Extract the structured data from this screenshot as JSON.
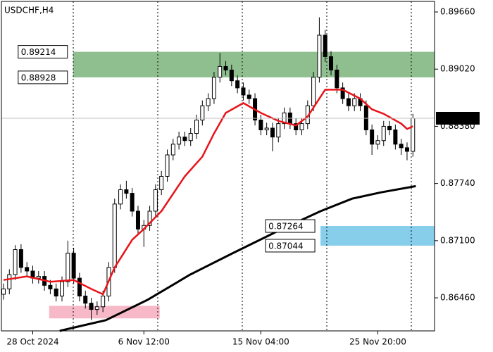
{
  "chart_data": {
    "type": "candlestick",
    "title": "USDCHF,H4",
    "xlim": [
      -0.6,
      73.7
    ],
    "ylim": [
      0.8609,
      0.89794
    ],
    "xticks": [
      {
        "value": 5,
        "label": "28 Oct 2024"
      },
      {
        "value": 24,
        "label": "6 Nov 12:00"
      },
      {
        "value": 44,
        "label": "15 Nov 04:00"
      },
      {
        "value": 64,
        "label": "25 Nov 20:00"
      }
    ],
    "yticks": [
      {
        "value": 0.8966,
        "label": "0.89660"
      },
      {
        "value": 0.8902,
        "label": "0.89020"
      },
      {
        "value": 0.8838,
        "label": "0.88380"
      },
      {
        "value": 0.8774,
        "label": "0.87740"
      },
      {
        "value": 0.871,
        "label": "0.87100"
      },
      {
        "value": 0.8646,
        "label": "0.86460"
      }
    ],
    "open": [
      0.865,
      0.8656,
      0.8672,
      0.87,
      0.868,
      0.8676,
      0.8668,
      0.867,
      0.866,
      0.8656,
      0.8648,
      0.8664,
      0.8696,
      0.8668,
      0.8648,
      0.864,
      0.8633,
      0.8636,
      0.8648,
      0.868,
      0.8751,
      0.8767,
      0.8763,
      0.8743,
      0.8723,
      0.8727,
      0.8743,
      0.8767,
      0.8782,
      0.8806,
      0.8818,
      0.8826,
      0.8822,
      0.883,
      0.8845,
      0.8861,
      0.8869,
      0.8893,
      0.8905,
      0.8901,
      0.8889,
      0.8881,
      0.8873,
      0.8869,
      0.8845,
      0.8834,
      0.8836,
      0.8826,
      0.8841,
      0.8853,
      0.8841,
      0.8834,
      0.8841,
      0.8861,
      0.8893,
      0.894,
      0.8916,
      0.8901,
      0.8881,
      0.8869,
      0.8861,
      0.8869,
      0.8861,
      0.8834,
      0.8818,
      0.8822,
      0.8838,
      0.8834,
      0.8818,
      0.8814,
      0.881
    ],
    "high": [
      0.8662,
      0.8678,
      0.8705,
      0.8706,
      0.8686,
      0.8682,
      0.8676,
      0.8676,
      0.8666,
      0.8662,
      0.867,
      0.871,
      0.8702,
      0.8674,
      0.8654,
      0.8646,
      0.8642,
      0.8654,
      0.8686,
      0.8757,
      0.8773,
      0.8777,
      0.8769,
      0.8749,
      0.8733,
      0.8749,
      0.8773,
      0.8788,
      0.8812,
      0.8824,
      0.8832,
      0.8832,
      0.8836,
      0.8851,
      0.8867,
      0.8875,
      0.8899,
      0.892,
      0.8911,
      0.8907,
      0.8895,
      0.8887,
      0.8879,
      0.8875,
      0.8851,
      0.8842,
      0.8842,
      0.8847,
      0.8859,
      0.8859,
      0.8847,
      0.8847,
      0.8867,
      0.8899,
      0.896,
      0.8946,
      0.8922,
      0.8907,
      0.8887,
      0.8875,
      0.8875,
      0.8875,
      0.8867,
      0.884,
      0.8828,
      0.8844,
      0.8844,
      0.884,
      0.8824,
      0.882,
      0.8852
    ],
    "low": [
      0.8644,
      0.865,
      0.8666,
      0.8674,
      0.867,
      0.8662,
      0.8662,
      0.8654,
      0.865,
      0.8642,
      0.8642,
      0.8658,
      0.8662,
      0.8642,
      0.8634,
      0.8621,
      0.8627,
      0.863,
      0.8642,
      0.8674,
      0.8745,
      0.8757,
      0.8737,
      0.8717,
      0.8703,
      0.8721,
      0.8737,
      0.8761,
      0.8776,
      0.88,
      0.8812,
      0.8816,
      0.8816,
      0.8824,
      0.8839,
      0.8855,
      0.8863,
      0.8887,
      0.8895,
      0.8883,
      0.8875,
      0.8867,
      0.8863,
      0.8839,
      0.8828,
      0.8828,
      0.881,
      0.882,
      0.8835,
      0.8835,
      0.8828,
      0.8828,
      0.8835,
      0.8855,
      0.8887,
      0.891,
      0.8895,
      0.8875,
      0.8863,
      0.8855,
      0.8855,
      0.8855,
      0.8828,
      0.8806,
      0.8812,
      0.8816,
      0.8828,
      0.8812,
      0.8806,
      0.88,
      0.8804
    ],
    "close": [
      0.8656,
      0.8672,
      0.87,
      0.868,
      0.8676,
      0.8668,
      0.867,
      0.866,
      0.8656,
      0.8648,
      0.8664,
      0.8696,
      0.8668,
      0.8648,
      0.864,
      0.8633,
      0.8636,
      0.8648,
      0.868,
      0.8751,
      0.8767,
      0.8763,
      0.8743,
      0.8723,
      0.8727,
      0.8743,
      0.8767,
      0.8782,
      0.8806,
      0.8818,
      0.8826,
      0.8822,
      0.883,
      0.8845,
      0.8861,
      0.8869,
      0.8893,
      0.8905,
      0.8901,
      0.8889,
      0.8881,
      0.8873,
      0.8869,
      0.8845,
      0.8834,
      0.8836,
      0.8826,
      0.8841,
      0.8853,
      0.8841,
      0.8834,
      0.8841,
      0.8861,
      0.8893,
      0.894,
      0.8916,
      0.8901,
      0.8881,
      0.8869,
      0.8861,
      0.8869,
      0.8861,
      0.8834,
      0.8818,
      0.8822,
      0.8838,
      0.8834,
      0.8818,
      0.8814,
      0.881,
      0.8847
    ],
    "up_color": "#ffffff",
    "down_color": "#000000",
    "lines": [
      {
        "color": "#e8141a",
        "width": 2.5,
        "x": [
          0,
          4,
          8,
          12,
          15,
          17,
          19,
          22,
          24,
          27,
          31,
          34,
          36,
          38,
          41,
          44,
          47,
          50,
          52,
          54,
          55,
          58,
          61,
          63,
          65,
          68,
          69,
          70
        ],
        "values": [
          0.8666,
          0.867,
          0.8664,
          0.8666,
          0.8656,
          0.865,
          0.868,
          0.8711,
          0.8723,
          0.8743,
          0.8782,
          0.8804,
          0.883,
          0.8853,
          0.8864,
          0.8853,
          0.8844,
          0.8839,
          0.8849,
          0.8869,
          0.8879,
          0.8879,
          0.8869,
          0.8857,
          0.8852,
          0.8841,
          0.8835,
          0.8838
        ]
      },
      {
        "color": "#000000",
        "width": 3,
        "x": [
          9.6,
          17.5,
          24.7,
          31.9,
          39.2,
          47.6,
          54.2,
          59.6,
          64.5,
          70.5
        ],
        "values": [
          0.8609,
          0.8621,
          0.8644,
          0.8672,
          0.8696,
          0.8723,
          0.8743,
          0.8757,
          0.8764,
          0.8771
        ]
      }
    ],
    "zones": [
      {
        "color": "#8fbf8f",
        "top": 0.89214,
        "bottom": 0.88928,
        "from": 11.9,
        "show_labels": true
      },
      {
        "color": "#87ceeb",
        "top": 0.87264,
        "bottom": 0.87044,
        "from": 54.2,
        "show_labels": true
      },
      {
        "color": "#f7b8c8",
        "top": 0.8637,
        "bottom": 0.8623,
        "from": 7.8,
        "to": 26.7,
        "show_labels": false
      }
    ],
    "current_price": {
      "value": 0.8847,
      "label": "0.88470"
    }
  }
}
